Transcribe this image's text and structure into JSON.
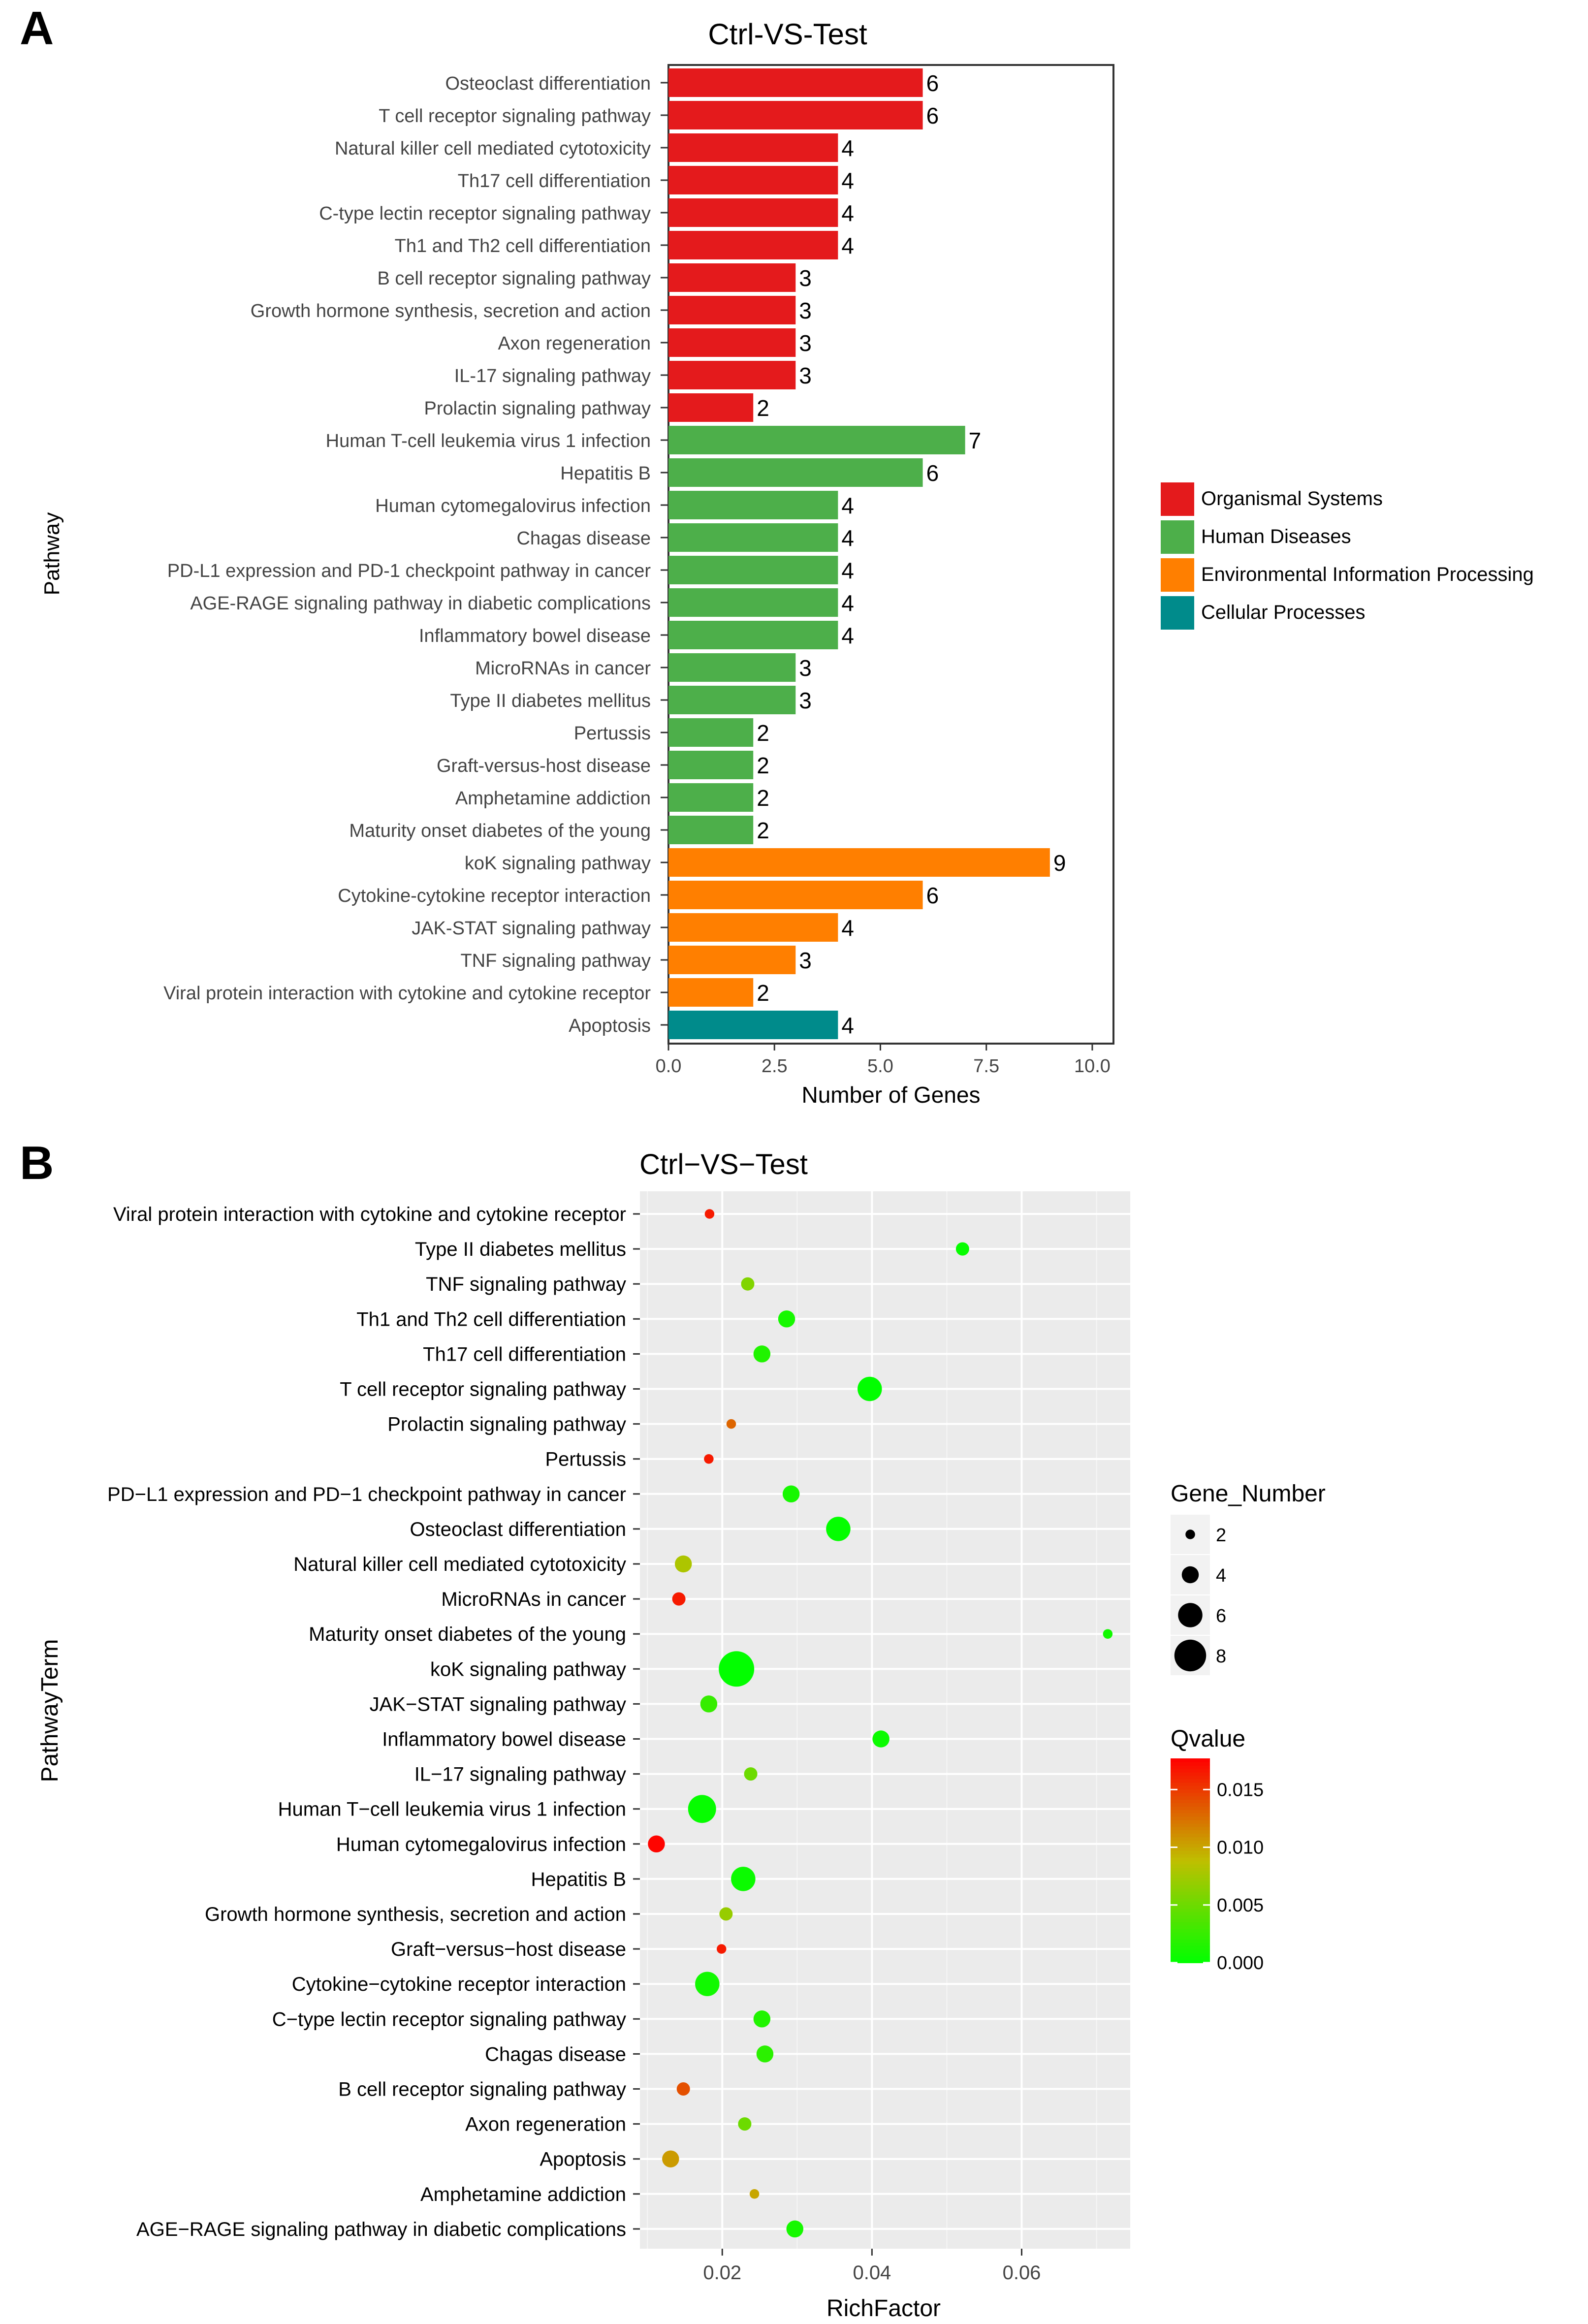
{
  "panel_a": {
    "label": "A",
    "chart_data": {
      "type": "bar",
      "orientation": "horizontal",
      "title": "Ctrl-VS-Test",
      "xlabel": "Number of Genes",
      "ylabel": "Pathway",
      "xlim": [
        0,
        10.5
      ],
      "xticks": [
        0,
        2.5,
        5,
        7.5,
        10
      ],
      "xtick_labels": [
        "0.0",
        "2.5",
        "5.0",
        "7.5",
        "10.0"
      ],
      "categories": [
        "Osteoclast differentiation",
        "T cell receptor signaling pathway",
        "Natural killer cell mediated cytotoxicity",
        "Th17 cell differentiation",
        "C-type lectin receptor signaling pathway",
        "Th1 and Th2 cell differentiation",
        "B cell receptor signaling pathway",
        "Growth hormone synthesis, secretion and action",
        "Axon regeneration",
        "IL-17 signaling pathway",
        "Prolactin signaling pathway",
        "Human T-cell leukemia virus 1 infection",
        "Hepatitis B",
        "Human cytomegalovirus infection",
        "Chagas disease",
        "PD-L1 expression and PD-1 checkpoint pathway in cancer",
        "AGE-RAGE signaling pathway in diabetic complications",
        "Inflammatory bowel disease",
        "MicroRNAs in cancer",
        "Type II diabetes mellitus",
        "Pertussis",
        "Graft-versus-host disease",
        "Amphetamine addiction",
        "Maturity onset diabetes of the young",
        "koK signaling pathway",
        "Cytokine-cytokine receptor interaction",
        "JAK-STAT signaling pathway",
        "TNF signaling pathway",
        "Viral protein interaction with cytokine and cytokine receptor",
        "Apoptosis"
      ],
      "values": [
        6,
        6,
        4,
        4,
        4,
        4,
        3,
        3,
        3,
        3,
        2,
        7,
        6,
        4,
        4,
        4,
        4,
        4,
        3,
        3,
        2,
        2,
        2,
        2,
        9,
        6,
        4,
        3,
        2,
        4
      ],
      "groups": [
        0,
        0,
        0,
        0,
        0,
        0,
        0,
        0,
        0,
        0,
        0,
        1,
        1,
        1,
        1,
        1,
        1,
        1,
        1,
        1,
        1,
        1,
        1,
        1,
        2,
        2,
        2,
        2,
        2,
        3
      ],
      "legend": [
        {
          "name": "Organismal Systems",
          "color": "#e41a1c"
        },
        {
          "name": "Human Diseases",
          "color": "#4daf4a"
        },
        {
          "name": "Environmental Information Processing",
          "color": "#ff7f00"
        },
        {
          "name": "Cellular Processes",
          "color": "#008b8b"
        }
      ]
    }
  },
  "panel_b": {
    "label": "B",
    "chart_data": {
      "type": "scatter",
      "title": "Ctrl−VS−Test",
      "xlabel": "RichFactor",
      "ylabel": "PathwayTerm",
      "xlim": [
        0.009,
        0.0745
      ],
      "xticks": [
        0.02,
        0.04,
        0.06
      ],
      "xtick_labels": [
        "0.02",
        "0.04",
        "0.06"
      ],
      "points": [
        {
          "term": "Viral protein interaction with cytokine and cytokine receptor",
          "richfactor": 0.0183,
          "gene_number": 2,
          "qvalue": 0.0165
        },
        {
          "term": "Type II diabetes mellitus",
          "richfactor": 0.0521,
          "gene_number": 3,
          "qvalue": 0.0003
        },
        {
          "term": "TNF signaling pathway",
          "richfactor": 0.0234,
          "gene_number": 3,
          "qvalue": 0.006
        },
        {
          "term": "Th1 and Th2 cell differentiation",
          "richfactor": 0.0286,
          "gene_number": 4,
          "qvalue": 0.001
        },
        {
          "term": "Th17 cell differentiation",
          "richfactor": 0.0253,
          "gene_number": 4,
          "qvalue": 0.0015
        },
        {
          "term": "T cell receptor signaling pathway",
          "richfactor": 0.0397,
          "gene_number": 6,
          "qvalue": 0.0001
        },
        {
          "term": "Prolactin signaling pathway",
          "richfactor": 0.0212,
          "gene_number": 2,
          "qvalue": 0.013
        },
        {
          "term": "Pertussis",
          "richfactor": 0.0182,
          "gene_number": 2,
          "qvalue": 0.0165
        },
        {
          "term": "PD−L1 expression and PD−1 checkpoint pathway in cancer",
          "richfactor": 0.0292,
          "gene_number": 4,
          "qvalue": 0.001
        },
        {
          "term": "Osteoclast differentiation",
          "richfactor": 0.0355,
          "gene_number": 6,
          "qvalue": 0.0002
        },
        {
          "term": "Natural killer cell mediated cytotoxicity",
          "richfactor": 0.0148,
          "gene_number": 4,
          "qvalue": 0.008
        },
        {
          "term": "MicroRNAs in cancer",
          "richfactor": 0.0142,
          "gene_number": 3,
          "qvalue": 0.0165
        },
        {
          "term": "Maturity onset diabetes of the young",
          "richfactor": 0.0715,
          "gene_number": 2,
          "qvalue": 0.0008
        },
        {
          "term": "koK signaling pathway",
          "richfactor": 0.0219,
          "gene_number": 9,
          "qvalue": 0.0001
        },
        {
          "term": "JAK−STAT signaling pathway",
          "richfactor": 0.0182,
          "gene_number": 4,
          "qvalue": 0.0025
        },
        {
          "term": "Inflammatory bowel disease",
          "richfactor": 0.0412,
          "gene_number": 4,
          "qvalue": 0.0005
        },
        {
          "term": "IL−17 signaling pathway",
          "richfactor": 0.0238,
          "gene_number": 3,
          "qvalue": 0.005
        },
        {
          "term": "Human T−cell leukemia virus 1 infection",
          "richfactor": 0.0173,
          "gene_number": 7,
          "qvalue": 0.0003
        },
        {
          "term": "Human cytomegalovirus infection",
          "richfactor": 0.0112,
          "gene_number": 4,
          "qvalue": 0.0175
        },
        {
          "term": "Hepatitis B",
          "richfactor": 0.0228,
          "gene_number": 6,
          "qvalue": 0.0005
        },
        {
          "term": "Growth hormone synthesis, secretion and action",
          "richfactor": 0.0205,
          "gene_number": 3,
          "qvalue": 0.007
        },
        {
          "term": "Graft−versus−host disease",
          "richfactor": 0.0199,
          "gene_number": 2,
          "qvalue": 0.0165
        },
        {
          "term": "Cytokine−cytokine receptor interaction",
          "richfactor": 0.018,
          "gene_number": 6,
          "qvalue": 0.0008
        },
        {
          "term": "C−type lectin receptor signaling pathway",
          "richfactor": 0.0253,
          "gene_number": 4,
          "qvalue": 0.0015
        },
        {
          "term": "Chagas disease",
          "richfactor": 0.0257,
          "gene_number": 4,
          "qvalue": 0.002
        },
        {
          "term": "B cell receptor signaling pathway",
          "richfactor": 0.0148,
          "gene_number": 3,
          "qvalue": 0.014
        },
        {
          "term": "Axon regeneration",
          "richfactor": 0.023,
          "gene_number": 3,
          "qvalue": 0.005
        },
        {
          "term": "Apoptosis",
          "richfactor": 0.0131,
          "gene_number": 4,
          "qvalue": 0.0105
        },
        {
          "term": "Amphetamine addiction",
          "richfactor": 0.0243,
          "gene_number": 2,
          "qvalue": 0.01
        },
        {
          "term": "AGE−RAGE signaling pathway in diabetic complications",
          "richfactor": 0.0297,
          "gene_number": 4,
          "qvalue": 0.001
        }
      ],
      "size_legend": {
        "title": "Gene_Number",
        "values": [
          2,
          4,
          6,
          8
        ],
        "labels": [
          "2",
          "4",
          "6",
          "8"
        ]
      },
      "color_legend": {
        "title": "Qvalue",
        "low_color": "#00ff00",
        "mid_color": "#bfbf00",
        "high_color": "#ff0000",
        "range": [
          0,
          0.0177
        ],
        "ticks": [
          0.015,
          0.01,
          0.005,
          0.0
        ],
        "tick_labels": [
          "0.015",
          "0.010",
          "0.005",
          "0.000"
        ]
      }
    }
  }
}
